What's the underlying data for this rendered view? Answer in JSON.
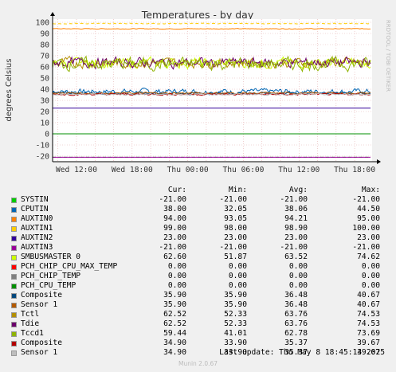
{
  "chart_data": {
    "type": "line",
    "title": "Temperatures - by day",
    "ylabel": "degrees Celsius",
    "ylim": [
      -25,
      100
    ],
    "yticks": [
      -20,
      -10,
      0,
      10,
      20,
      30,
      40,
      50,
      60,
      70,
      80,
      90,
      100
    ],
    "xtick_labels": [
      "Wed 12:00",
      "Wed 18:00",
      "Thu 00:00",
      "Thu 06:00",
      "Thu 12:00",
      "Thu 18:00"
    ],
    "side_label": "RRDTOOL / TOBI OETIKER",
    "grid": true,
    "legend_headers": [
      "Cur:",
      "Min:",
      "Avg:",
      "Max:"
    ],
    "series": [
      {
        "name": "SYSTIN",
        "color": "#00cc00",
        "cur": "-21.00",
        "min": "-21.00",
        "avg": "-21.00",
        "max": "-21.00",
        "level": -21,
        "noise": 0,
        "dashed": true
      },
      {
        "name": "CPUTIN",
        "color": "#0066b3",
        "cur": "38.00",
        "min": "32.05",
        "avg": "38.06",
        "max": "44.50",
        "level": 38,
        "noise": 2.2,
        "dashed": false
      },
      {
        "name": "AUXTIN0",
        "color": "#ff8000",
        "cur": "94.00",
        "min": "93.05",
        "avg": "94.21",
        "max": "95.00",
        "level": 94.2,
        "noise": 0.3,
        "dashed": false
      },
      {
        "name": "AUXTIN1",
        "color": "#ffcc00",
        "cur": "99.00",
        "min": "98.00",
        "avg": "98.90",
        "max": "100.00",
        "level": 98.9,
        "noise": 0.3,
        "dashed": true
      },
      {
        "name": "AUXTIN2",
        "color": "#330099",
        "cur": "23.00",
        "min": "23.00",
        "avg": "23.00",
        "max": "23.00",
        "level": 23,
        "noise": 0,
        "dashed": false
      },
      {
        "name": "AUXTIN3",
        "color": "#990099",
        "cur": "-21.00",
        "min": "-21.00",
        "avg": "-21.00",
        "max": "-21.00",
        "level": -21,
        "noise": 0,
        "dashed": false
      },
      {
        "name": "SMBUSMASTER 0",
        "color": "#ccff00",
        "cur": "62.60",
        "min": "51.87",
        "avg": "63.52",
        "max": "74.62",
        "level": 63.5,
        "noise": 4,
        "dashed": false
      },
      {
        "name": "PCH_CHIP_CPU_MAX_TEMP",
        "color": "#ff0000",
        "cur": "0.00",
        "min": "0.00",
        "avg": "0.00",
        "max": "0.00",
        "level": 0,
        "noise": 0,
        "dashed": false
      },
      {
        "name": "PCH_CHIP_TEMP",
        "color": "#808080",
        "cur": "0.00",
        "min": "0.00",
        "avg": "0.00",
        "max": "0.00",
        "level": 0,
        "noise": 0,
        "dashed": false
      },
      {
        "name": "PCH_CPU_TEMP",
        "color": "#008f00",
        "cur": "0.00",
        "min": "0.00",
        "avg": "0.00",
        "max": "0.00",
        "level": 0,
        "noise": 0,
        "dashed": false
      },
      {
        "name": "Composite",
        "color": "#00487d",
        "cur": "35.90",
        "min": "35.90",
        "avg": "36.48",
        "max": "40.67",
        "level": 36.5,
        "noise": 0.8,
        "dashed": false
      },
      {
        "name": "Sensor 1",
        "color": "#b35a00",
        "cur": "35.90",
        "min": "35.90",
        "avg": "36.48",
        "max": "40.67",
        "level": 36.5,
        "noise": 0.8,
        "dashed": false
      },
      {
        "name": "Tctl",
        "color": "#b38f00",
        "cur": "62.52",
        "min": "52.33",
        "avg": "63.76",
        "max": "74.53",
        "level": 63.8,
        "noise": 4,
        "dashed": false
      },
      {
        "name": "Tdie",
        "color": "#6b006b",
        "cur": "62.52",
        "min": "52.33",
        "avg": "63.76",
        "max": "74.53",
        "level": 63.8,
        "noise": 4,
        "dashed": false
      },
      {
        "name": "Tccd1",
        "color": "#8fb300",
        "cur": "59.44",
        "min": "41.01",
        "avg": "62.78",
        "max": "73.69",
        "level": 62.8,
        "noise": 5,
        "dashed": false
      },
      {
        "name": "Composite",
        "color": "#b30000",
        "cur": "34.90",
        "min": "33.90",
        "avg": "35.37",
        "max": "39.67",
        "level": 35.4,
        "noise": 0.7,
        "dashed": false
      },
      {
        "name": "Sensor 1",
        "color": "#bebebe",
        "cur": "34.90",
        "min": "33.90",
        "avg": "35.37",
        "max": "39.67",
        "level": 35.4,
        "noise": 0.7,
        "dashed": false
      }
    ],
    "last_update": "Last update: Thu May  8 18:45:14 2025",
    "version": "Munin 2.0.67"
  }
}
